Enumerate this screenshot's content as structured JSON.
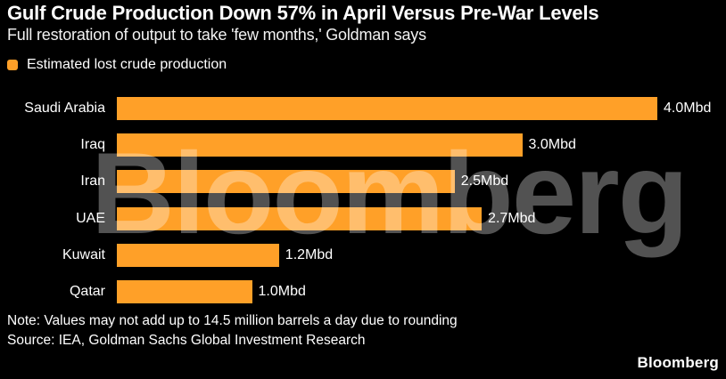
{
  "header": {
    "title": "Gulf Crude Production Down 57% in April Versus Pre-War Levels",
    "subtitle": "Full restoration of output to take 'few months,' Goldman says"
  },
  "legend": {
    "label": "Estimated lost crude production",
    "marker_color": "#FFA028"
  },
  "chart_data": {
    "type": "bar",
    "orientation": "horizontal",
    "title": "Gulf Crude Production Down 57% in April Versus Pre-War Levels",
    "subtitle": "Full restoration of output to take 'few months,' Goldman says",
    "series_name": "Estimated lost crude production",
    "categories": [
      "Saudi Arabia",
      "Iraq",
      "Iran",
      "UAE",
      "Kuwait",
      "Qatar"
    ],
    "values": [
      4.0,
      3.0,
      2.5,
      2.7,
      1.2,
      1.0
    ],
    "value_labels": [
      "4.0Mbd",
      "3.0Mbd",
      "2.5Mbd",
      "2.7Mbd",
      "1.2Mbd",
      "1.0Mbd"
    ],
    "unit": "Mbd",
    "xlim": [
      0,
      4.0
    ],
    "grid": false,
    "legend_position": "top-left",
    "bar_color": "#FFA028",
    "background_color": "#000000",
    "text_color": "#FFFFFF"
  },
  "watermark": "Bloomberg",
  "footer": {
    "note": "Note: Values may not add up to 14.5 million barrels a day due to rounding",
    "source": "Source: IEA, Goldman Sachs Global Investment Research",
    "logo": "Bloomberg"
  }
}
